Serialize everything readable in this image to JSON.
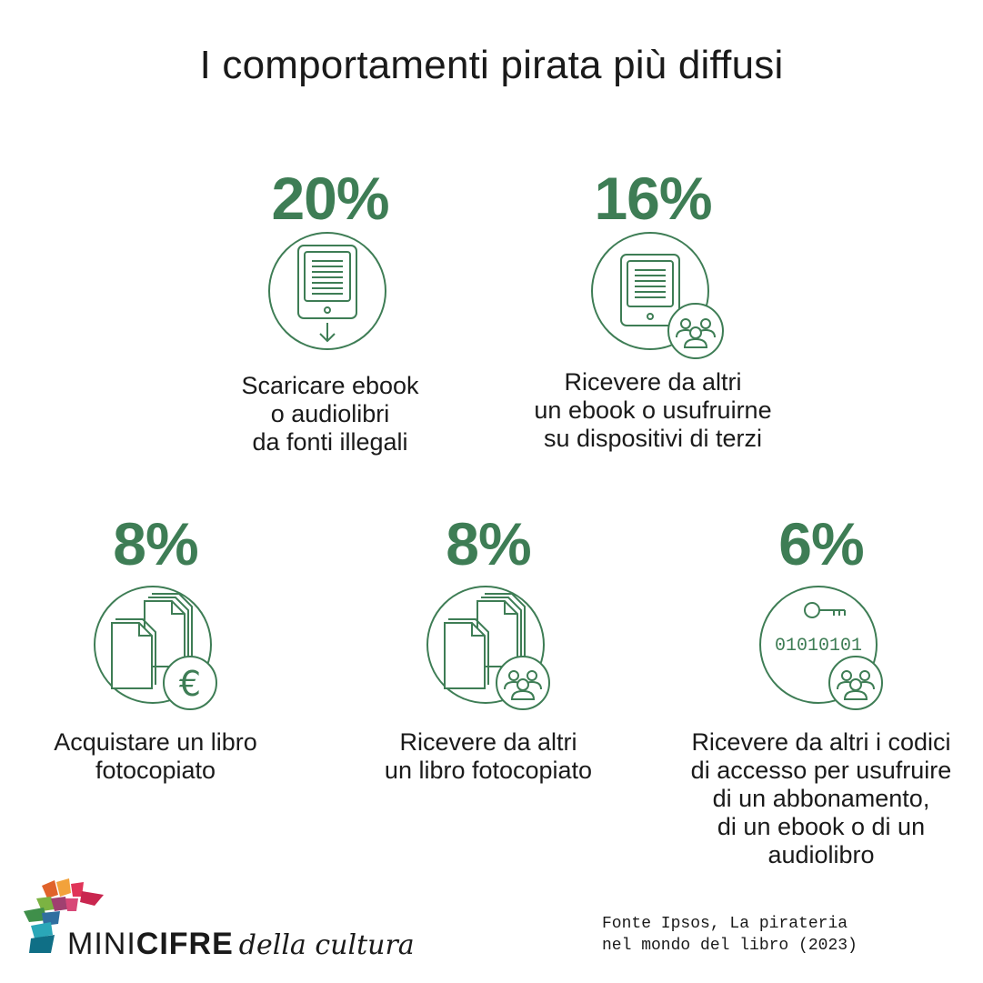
{
  "title": "I comportamenti pirata più diffusi",
  "colors": {
    "accent": "#3e7d55",
    "text": "#1a1a1a",
    "background": "#ffffff"
  },
  "stats": [
    {
      "value": "20%",
      "icon": "ebook-download-icon",
      "description": "Scaricare ebook\no audiolibri\nda fonti illegali"
    },
    {
      "value": "16%",
      "icon": "ebook-shared-icon",
      "description": "Ricevere da altri\nun ebook o usufruirne\nsu dispositivi di terzi"
    },
    {
      "value": "8%",
      "icon": "photocopy-euro-icon",
      "description": "Acquistare un libro\nfotocopiato"
    },
    {
      "value": "8%",
      "icon": "photocopy-shared-icon",
      "description": "Ricevere da altri\nun libro fotocopiato"
    },
    {
      "value": "6%",
      "icon": "access-code-shared-icon",
      "description": "Ricevere da altri i codici\ndi accesso per usufruire\ndi un abbonamento,\ndi un ebook o di un\naudiolibro",
      "icon_text": "01010101"
    }
  ],
  "logo": {
    "mini": "MINI",
    "cifre": "CIFRE",
    "tail": "della cultura"
  },
  "source": "Fonte Ipsos, La pirateria\nnel mondo del libro (2023)"
}
